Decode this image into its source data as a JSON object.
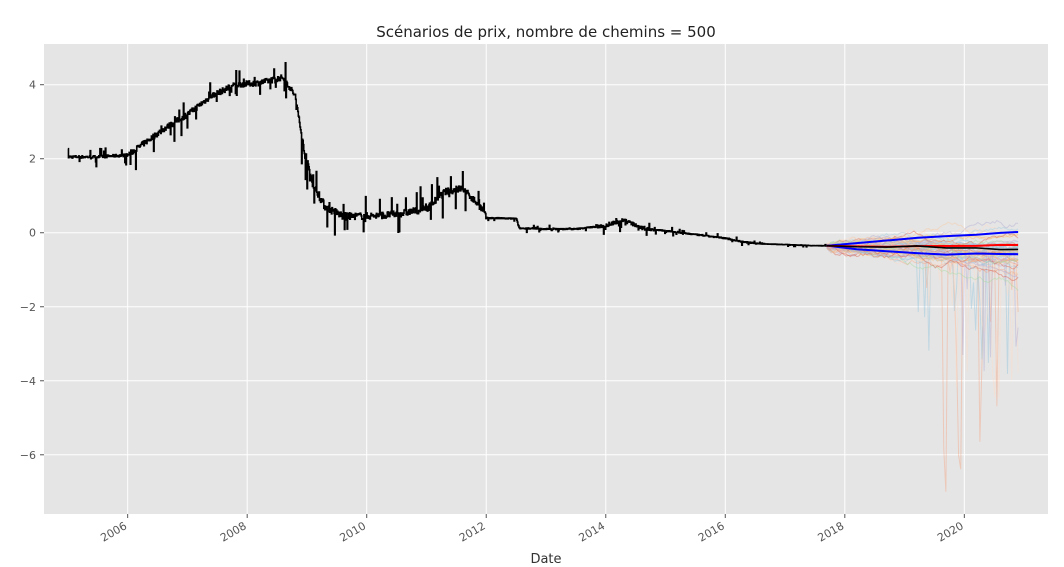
{
  "chart_data": {
    "type": "line",
    "title": "Scénarios de prix, nombre de chemins = 500",
    "xlabel": "Date",
    "ylabel": "",
    "xlim": [
      2004.6,
      2021.4
    ],
    "ylim": [
      -7.6,
      5.1
    ],
    "grid": true,
    "x_ticks": [
      2006,
      2008,
      2010,
      2012,
      2014,
      2016,
      2018,
      2020
    ],
    "y_ticks": [
      -6,
      -4,
      -2,
      0,
      2,
      4
    ],
    "y_tick_labels": [
      "−6",
      "−4",
      "−2",
      "0",
      "2",
      "4"
    ],
    "colors": {
      "background": "#e5e5e5",
      "grid": "#ffffff",
      "history": "#000000",
      "band": "#0000ff",
      "mean": "#ff0000",
      "median": "#000000"
    },
    "series": [
      {
        "role": "historical",
        "x": [
          2005.0,
          2005.5,
          2006.0,
          2006.3,
          2006.6,
          2007.0,
          2007.4,
          2007.8,
          2008.2,
          2008.6,
          2008.8,
          2008.95,
          2009.1,
          2009.3,
          2009.6,
          2010.0,
          2010.5,
          2011.0,
          2011.3,
          2011.6,
          2011.9,
          2012.0,
          2012.5,
          2012.55,
          2013.0,
          2013.5,
          2014.0,
          2014.3,
          2014.6,
          2015.0,
          2015.5,
          2016.0,
          2016.3,
          2016.6,
          2017.0,
          2017.5,
          2017.7
        ],
        "y": [
          2.05,
          2.05,
          2.1,
          2.45,
          2.8,
          3.2,
          3.7,
          4.0,
          4.05,
          4.2,
          3.7,
          2.2,
          1.3,
          0.7,
          0.45,
          0.45,
          0.5,
          0.65,
          1.1,
          1.2,
          0.7,
          0.4,
          0.38,
          0.12,
          0.1,
          0.1,
          0.2,
          0.35,
          0.12,
          0.05,
          -0.05,
          -0.15,
          -0.25,
          -0.3,
          -0.32,
          -0.35,
          -0.35
        ]
      },
      {
        "role": "upper-band",
        "x": [
          2017.7,
          2018.2,
          2018.7,
          2019.2,
          2019.7,
          2020.2,
          2020.6,
          2020.9
        ],
        "y": [
          -0.35,
          -0.27,
          -0.22,
          -0.15,
          -0.1,
          -0.05,
          0.0,
          0.02
        ]
      },
      {
        "role": "lower-band",
        "x": [
          2017.7,
          2018.2,
          2018.7,
          2019.2,
          2019.7,
          2020.2,
          2020.6,
          2020.9
        ],
        "y": [
          -0.35,
          -0.45,
          -0.5,
          -0.55,
          -0.58,
          -0.55,
          -0.57,
          -0.58
        ]
      },
      {
        "role": "mean",
        "x": [
          2017.7,
          2018.2,
          2018.7,
          2019.2,
          2019.7,
          2020.2,
          2020.6,
          2020.9
        ],
        "y": [
          -0.35,
          -0.36,
          -0.37,
          -0.36,
          -0.35,
          -0.35,
          -0.34,
          -0.33
        ]
      },
      {
        "role": "median",
        "x": [
          2017.7,
          2018.2,
          2018.7,
          2019.2,
          2019.7,
          2020.2,
          2020.6,
          2020.9
        ],
        "y": [
          -0.35,
          -0.38,
          -0.38,
          -0.37,
          -0.4,
          -0.42,
          -0.44,
          -0.45
        ]
      }
    ]
  }
}
